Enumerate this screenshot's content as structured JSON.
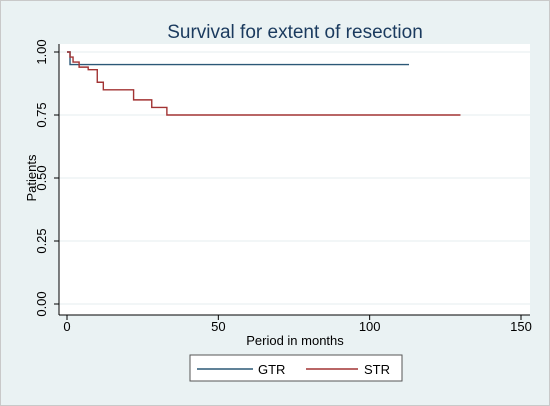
{
  "chart_data": {
    "type": "line",
    "title": "Survival for extent of resection",
    "xlabel": "Period in months",
    "ylabel": "Patients",
    "xlim": [
      0,
      150
    ],
    "ylim": [
      0,
      1
    ],
    "x_ticks": [
      0,
      50,
      100,
      150
    ],
    "y_ticks": [
      "0.00",
      "0.25",
      "0.50",
      "0.75",
      "1.00"
    ],
    "grid": true,
    "legend_position": "bottom",
    "series": [
      {
        "name": "GTR",
        "color": "#2c5877",
        "step": true,
        "x": [
          0,
          1,
          113
        ],
        "y": [
          1.0,
          0.95,
          0.95
        ]
      },
      {
        "name": "STR",
        "color": "#a23333",
        "step": true,
        "x": [
          0,
          1,
          2,
          4,
          7,
          10,
          12,
          22,
          28,
          33,
          130
        ],
        "y": [
          1.0,
          0.98,
          0.96,
          0.94,
          0.93,
          0.88,
          0.85,
          0.81,
          0.78,
          0.75,
          0.75
        ]
      }
    ]
  }
}
